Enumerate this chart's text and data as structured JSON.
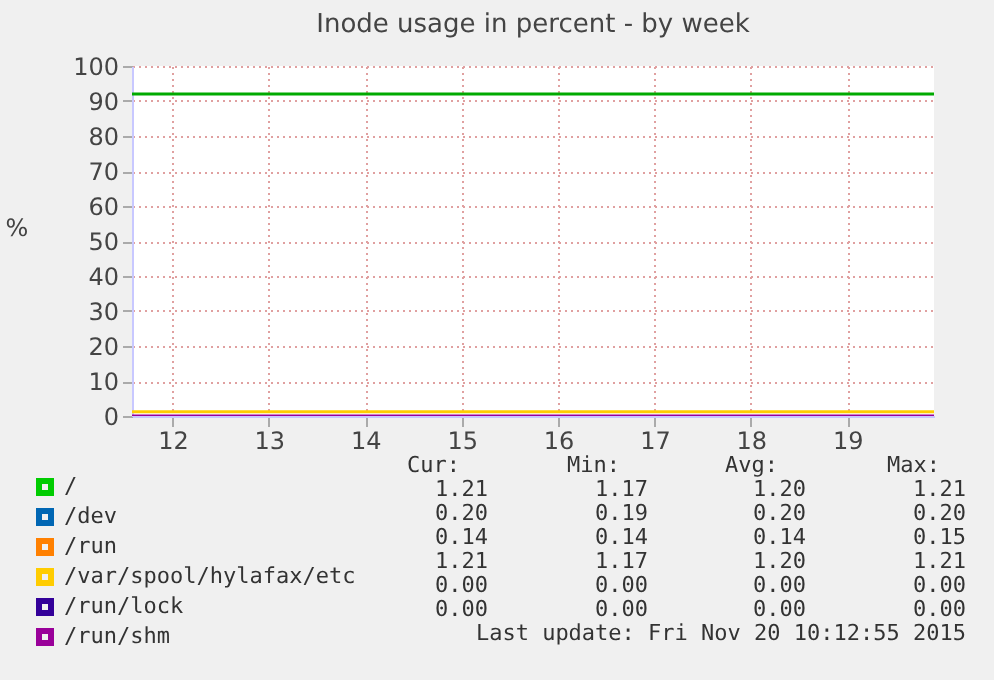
{
  "chart_data": {
    "type": "line",
    "title": "Inode usage in percent - by week",
    "ylabel": "%",
    "x": [
      11.58,
      19.9
    ],
    "xlim": [
      11.58,
      19.9
    ],
    "xticks": [
      12,
      13,
      14,
      15,
      16,
      17,
      18,
      19
    ],
    "ylim": [
      0,
      100
    ],
    "yticks": [
      0,
      10,
      20,
      30,
      40,
      50,
      60,
      70,
      80,
      90,
      100
    ],
    "grid": true,
    "legend": "bottom",
    "series": [
      {
        "name": "/",
        "color": "#00cc00",
        "values": [
          null,
          null
        ]
      },
      {
        "name": "/dev",
        "color": "#0066b3",
        "values": [
          null,
          null
        ]
      },
      {
        "name": "/run",
        "color": "#ff8000",
        "values": [
          null,
          null
        ]
      },
      {
        "name": "/var/spool/hylafax/etc",
        "color": "#ffcc00",
        "values": [
          1.2,
          1.2
        ]
      },
      {
        "name": "/run/lock",
        "color": "#330099",
        "values": [
          null,
          null
        ]
      },
      {
        "name": "/run/shm",
        "color": "#990099",
        "values": [
          0,
          0
        ]
      }
    ],
    "ref_lines": [
      {
        "axis": "y",
        "value": 92,
        "color": "#00aa00"
      }
    ],
    "annotations": [
      "Cur:",
      "Min:",
      "Avg:",
      "Max:",
      "1.21",
      "1.17",
      "1.20",
      "1.21",
      "0.20",
      "0.19",
      "0.20",
      "0.20",
      "0.14",
      "0.14",
      "0.14",
      "0.15",
      "1.21",
      "1.17",
      "1.20",
      "1.21",
      "0.00",
      "0.00",
      "0.00",
      "0.00",
      "0.00",
      "0.00",
      "0.00",
      "0.00",
      "Last update: Fri Nov 20 10:12:55 2015"
    ]
  }
}
